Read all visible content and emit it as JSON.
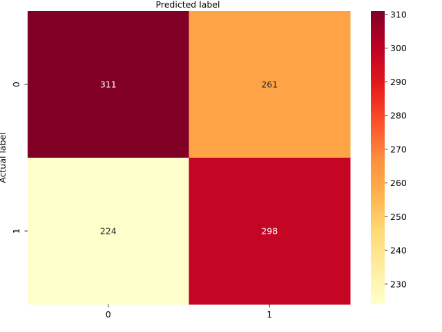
{
  "chart_data": {
    "type": "heatmap",
    "title": "",
    "xlabel": "Predicted label",
    "ylabel": "Actual label",
    "x_categories": [
      "0",
      "1"
    ],
    "y_categories": [
      "0",
      "1"
    ],
    "values": [
      [
        311,
        261
      ],
      [
        224,
        298
      ]
    ],
    "colormap": "YlOrRd",
    "vmin": 224,
    "vmax": 311,
    "colorbar_ticks": [
      "230",
      "240",
      "250",
      "260",
      "270",
      "280",
      "290",
      "300",
      "310"
    ],
    "colorbar_tick_values": [
      230,
      240,
      250,
      260,
      270,
      280,
      290,
      300,
      310
    ],
    "colormap_stops": [
      "#ffffcc",
      "#ffeda0",
      "#fed976",
      "#feb24c",
      "#fd8d3c",
      "#fc4e2a",
      "#e31a1c",
      "#bd0026",
      "#800026"
    ],
    "grid": false,
    "legend": "colorbar-right"
  }
}
